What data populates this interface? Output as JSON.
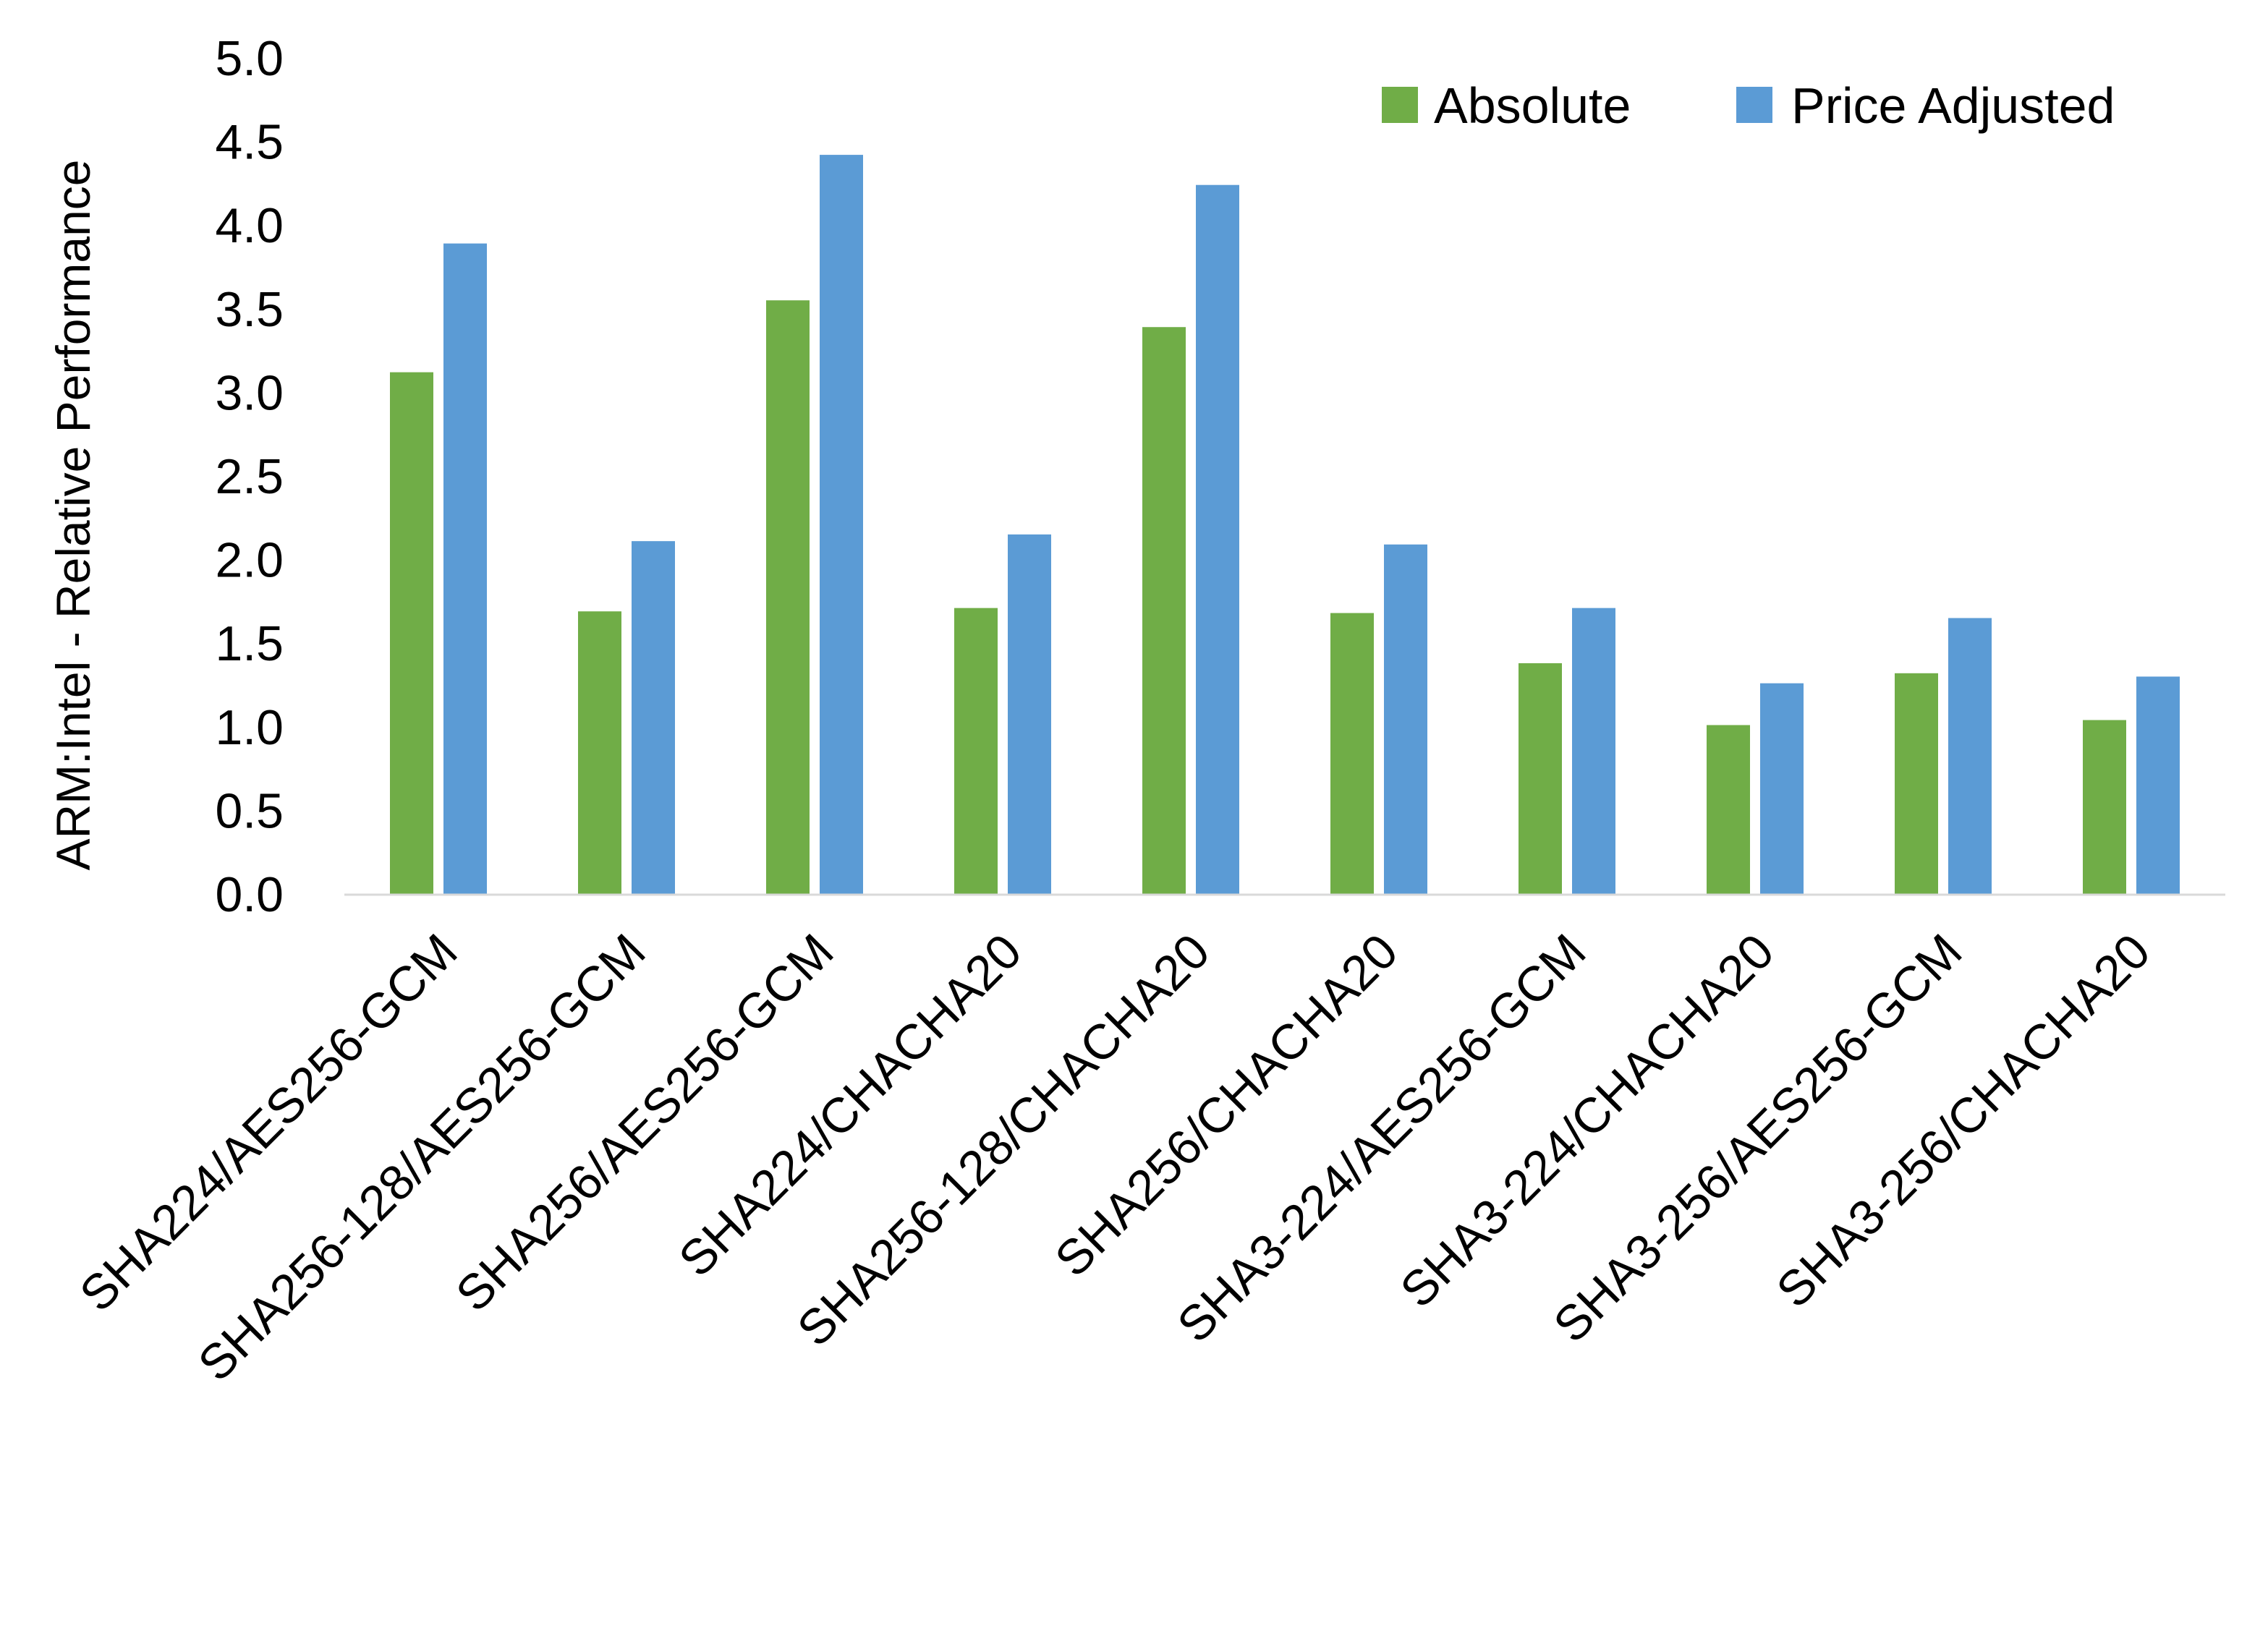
{
  "chart_data": {
    "type": "bar",
    "title": "",
    "xlabel": "",
    "ylabel": "ARM:Intel - Relative Performance",
    "ylim": [
      0,
      5
    ],
    "yticks": [
      "0.0",
      "0.5",
      "1.0",
      "1.5",
      "2.0",
      "2.5",
      "3.0",
      "3.5",
      "4.0",
      "4.5",
      "5.0"
    ],
    "grid": false,
    "legend_position": "top-right",
    "categories": [
      "SHA224/AES256-GCM",
      "SHA256-128/AES256-GCM",
      "SHA256/AES256-GCM",
      "SHA224/CHACHA20",
      "SHA256-128/CHACHA20",
      "SHA256/CHACHA20",
      "SHA3-224/AES256-GCM",
      "SHA3-224/CHACHA20",
      "SHA3-256/AES256-GCM",
      "SHA3-256/CHACHA20"
    ],
    "series": [
      {
        "name": "Absolute",
        "color": "#70AD47",
        "values": [
          3.12,
          1.69,
          3.55,
          1.71,
          3.39,
          1.68,
          1.38,
          1.01,
          1.32,
          1.04
        ]
      },
      {
        "name": "Price Adjusted",
        "color": "#5B9BD5",
        "values": [
          3.89,
          2.11,
          4.42,
          2.15,
          4.24,
          2.09,
          1.71,
          1.26,
          1.65,
          1.3
        ]
      }
    ]
  }
}
